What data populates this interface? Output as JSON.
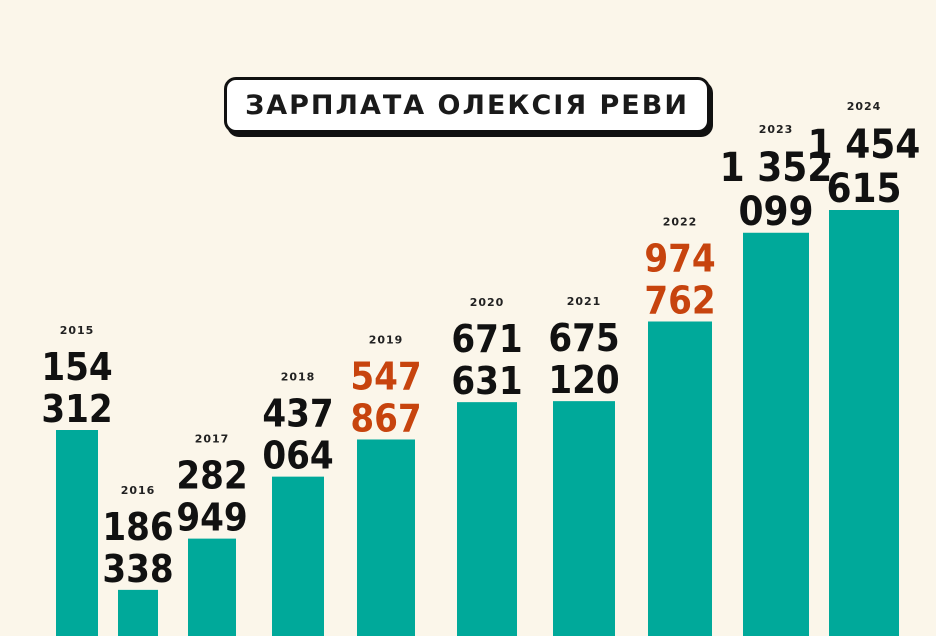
{
  "title": "ЗАРПЛАТА ОЛЕКСІЯ РЕВИ",
  "colors": {
    "bar": "#00a99a",
    "value": "#111111",
    "highlight": "#c7440e",
    "background": "#fbf6ea"
  },
  "chart_data": {
    "type": "bar",
    "title": "ЗАРПЛАТА ОЛЕКСІЯ РЕВИ",
    "categories": [
      "2015",
      "2016",
      "2017",
      "2018",
      "2019",
      "2020",
      "2021",
      "2022",
      "2023",
      "2024"
    ],
    "values": [
      154312,
      186338,
      282949,
      437064,
      547867,
      671631,
      675120,
      974762,
      1352099,
      1454615
    ],
    "value_labels": [
      [
        "154",
        "312"
      ],
      [
        "186",
        "338"
      ],
      [
        "282",
        "949"
      ],
      [
        "437",
        "064"
      ],
      [
        "547",
        "867"
      ],
      [
        "671",
        "631"
      ],
      [
        "675",
        "120"
      ],
      [
        "974",
        "762"
      ],
      [
        "1 352",
        "099"
      ],
      [
        "1 454",
        "615"
      ]
    ],
    "highlighted": [
      "2019",
      "2022"
    ],
    "xlabel": "",
    "ylabel": "",
    "grid": false,
    "legend": "none"
  }
}
